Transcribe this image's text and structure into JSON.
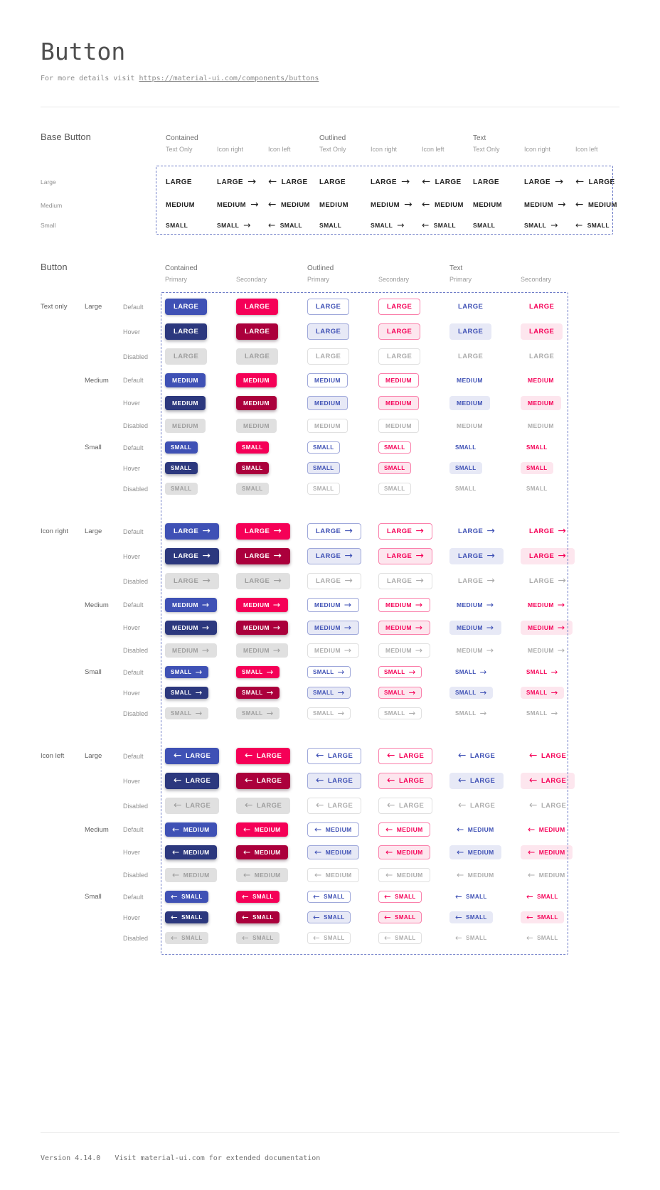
{
  "page": {
    "title": "Button",
    "subtitle_prefix": "For more details visit ",
    "subtitle_link": "https://material-ui.com/components/buttons"
  },
  "colors": {
    "primary": "#3F51B5",
    "primary_hover": "#2C387E",
    "secondary": "#F50057",
    "secondary_hover": "#AB003C",
    "disabled_bg": "#E0E0E0",
    "disabled_text": "#9E9E9E",
    "outlined_primary_border": "#9FA8DA",
    "outlined_secondary_border": "#FA80AB",
    "primary_tint": "#E7E9F6",
    "secondary_tint": "#FDE6EE",
    "dashed_frame": "#6F7DC8",
    "contained_text": "#FFFFFF",
    "base_text": "#212121"
  },
  "icons": {
    "arrow_right": "→",
    "arrow_left": "←"
  },
  "base_section": {
    "label": "Base Button",
    "group_headers": [
      "Contained",
      "Outlined",
      "Text"
    ],
    "subcolumn_headers": [
      "Text Only",
      "Icon right",
      "Icon left"
    ],
    "variants": [
      "text-only",
      "icon-right",
      "icon-left"
    ],
    "rows": [
      {
        "label": "Large",
        "size": "large",
        "button_text": "LARGE"
      },
      {
        "label": "Medium",
        "size": "medium",
        "button_text": "MEDIUM"
      },
      {
        "label": "Small",
        "size": "small",
        "button_text": "SMALL"
      }
    ]
  },
  "button_section": {
    "label": "Button",
    "group_headers": [
      "Contained",
      "Outlined",
      "Text"
    ],
    "subcolumn_headers": [
      "Primary",
      "Secondary"
    ],
    "columns": [
      {
        "id": "contained-primary",
        "class": "cp"
      },
      {
        "id": "contained-secondary",
        "class": "cs"
      },
      {
        "id": "outlined-primary",
        "class": "op"
      },
      {
        "id": "outlined-secondary",
        "class": "os"
      },
      {
        "id": "text-primary",
        "class": "tp"
      },
      {
        "id": "text-secondary",
        "class": "ts"
      }
    ],
    "icon_groups": [
      {
        "label": "Text only",
        "variant": "text-only"
      },
      {
        "label": "Icon right",
        "variant": "icon-right"
      },
      {
        "label": "Icon left",
        "variant": "icon-left"
      }
    ],
    "sizes": [
      {
        "label": "Large",
        "size": "large",
        "button_text": "LARGE"
      },
      {
        "label": "Medium",
        "size": "medium",
        "button_text": "MEDIUM"
      },
      {
        "label": "Small",
        "size": "small",
        "button_text": "SMALL"
      }
    ],
    "states": [
      {
        "label": "Default",
        "state": "default"
      },
      {
        "label": "Hover",
        "state": "hover"
      },
      {
        "label": "Disabled",
        "state": "disabled"
      }
    ]
  },
  "footer": {
    "version": "Version 4.14.0",
    "note": "Visit material-ui.com for extended documentation"
  }
}
